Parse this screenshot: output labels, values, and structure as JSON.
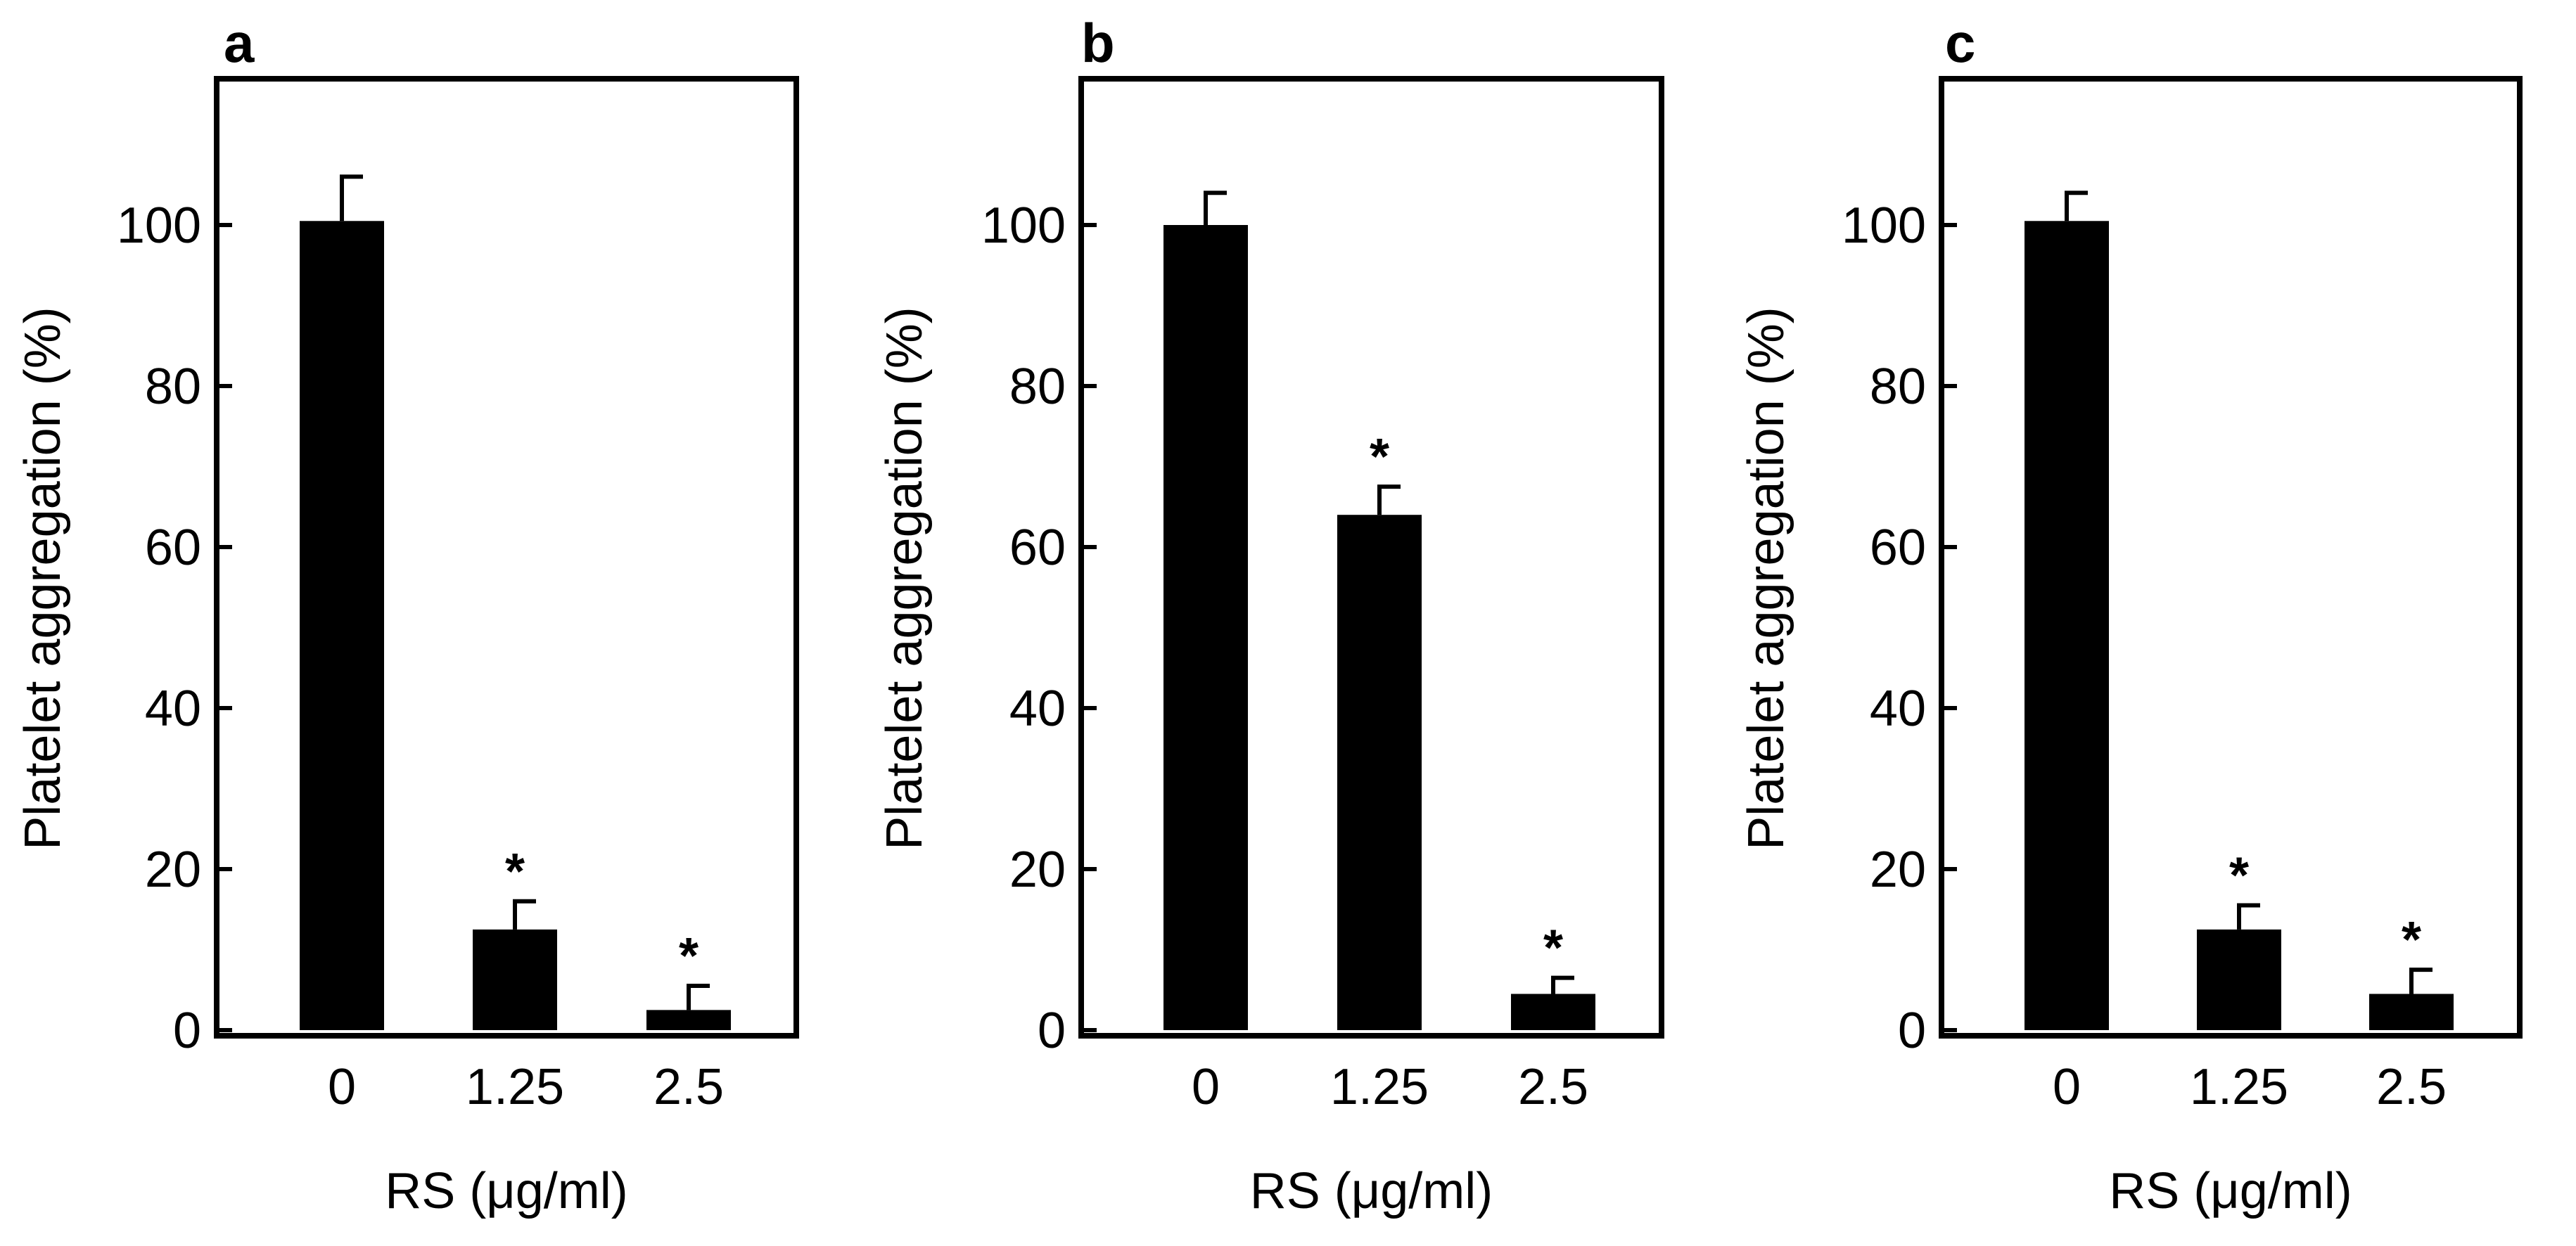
{
  "figure": {
    "colors": {
      "bar": "#000000",
      "frame": "#000000",
      "background": "#ffffff"
    }
  },
  "chart_data": [
    {
      "type": "bar",
      "panel_label": "a",
      "categories": [
        "0",
        "1.25",
        "2.5"
      ],
      "values": [
        100.5,
        12.5,
        2.5
      ],
      "errors": [
        5.5,
        3.5,
        3.0
      ],
      "significance": [
        "",
        "*",
        "*"
      ],
      "xlabel": "RS (μg/ml)",
      "ylabel": "Platelet aggregation (%)",
      "ylim": [
        0,
        120
      ],
      "yticks": [
        "0",
        "20",
        "40",
        "60",
        "80",
        "100"
      ]
    },
    {
      "type": "bar",
      "panel_label": "b",
      "categories": [
        "0",
        "1.25",
        "2.5"
      ],
      "values": [
        100.0,
        64.0,
        4.5
      ],
      "errors": [
        4.0,
        3.5,
        2.0
      ],
      "significance": [
        "",
        "*",
        "*"
      ],
      "xlabel": "RS (μg/ml)",
      "ylabel": "Platelet aggregation (%)",
      "ylim": [
        0,
        120
      ],
      "yticks": [
        "0",
        "20",
        "40",
        "60",
        "80",
        "100"
      ]
    },
    {
      "type": "bar",
      "panel_label": "c",
      "categories": [
        "0",
        "1.25",
        "2.5"
      ],
      "values": [
        100.5,
        12.5,
        4.5
      ],
      "errors": [
        3.5,
        3.0,
        3.0
      ],
      "significance": [
        "",
        "*",
        "*"
      ],
      "xlabel": "RS (μg/ml)",
      "ylabel": "Platelet aggregation (%)",
      "ylim": [
        0,
        120
      ],
      "yticks": [
        "0",
        "20",
        "40",
        "60",
        "80",
        "100"
      ]
    }
  ]
}
